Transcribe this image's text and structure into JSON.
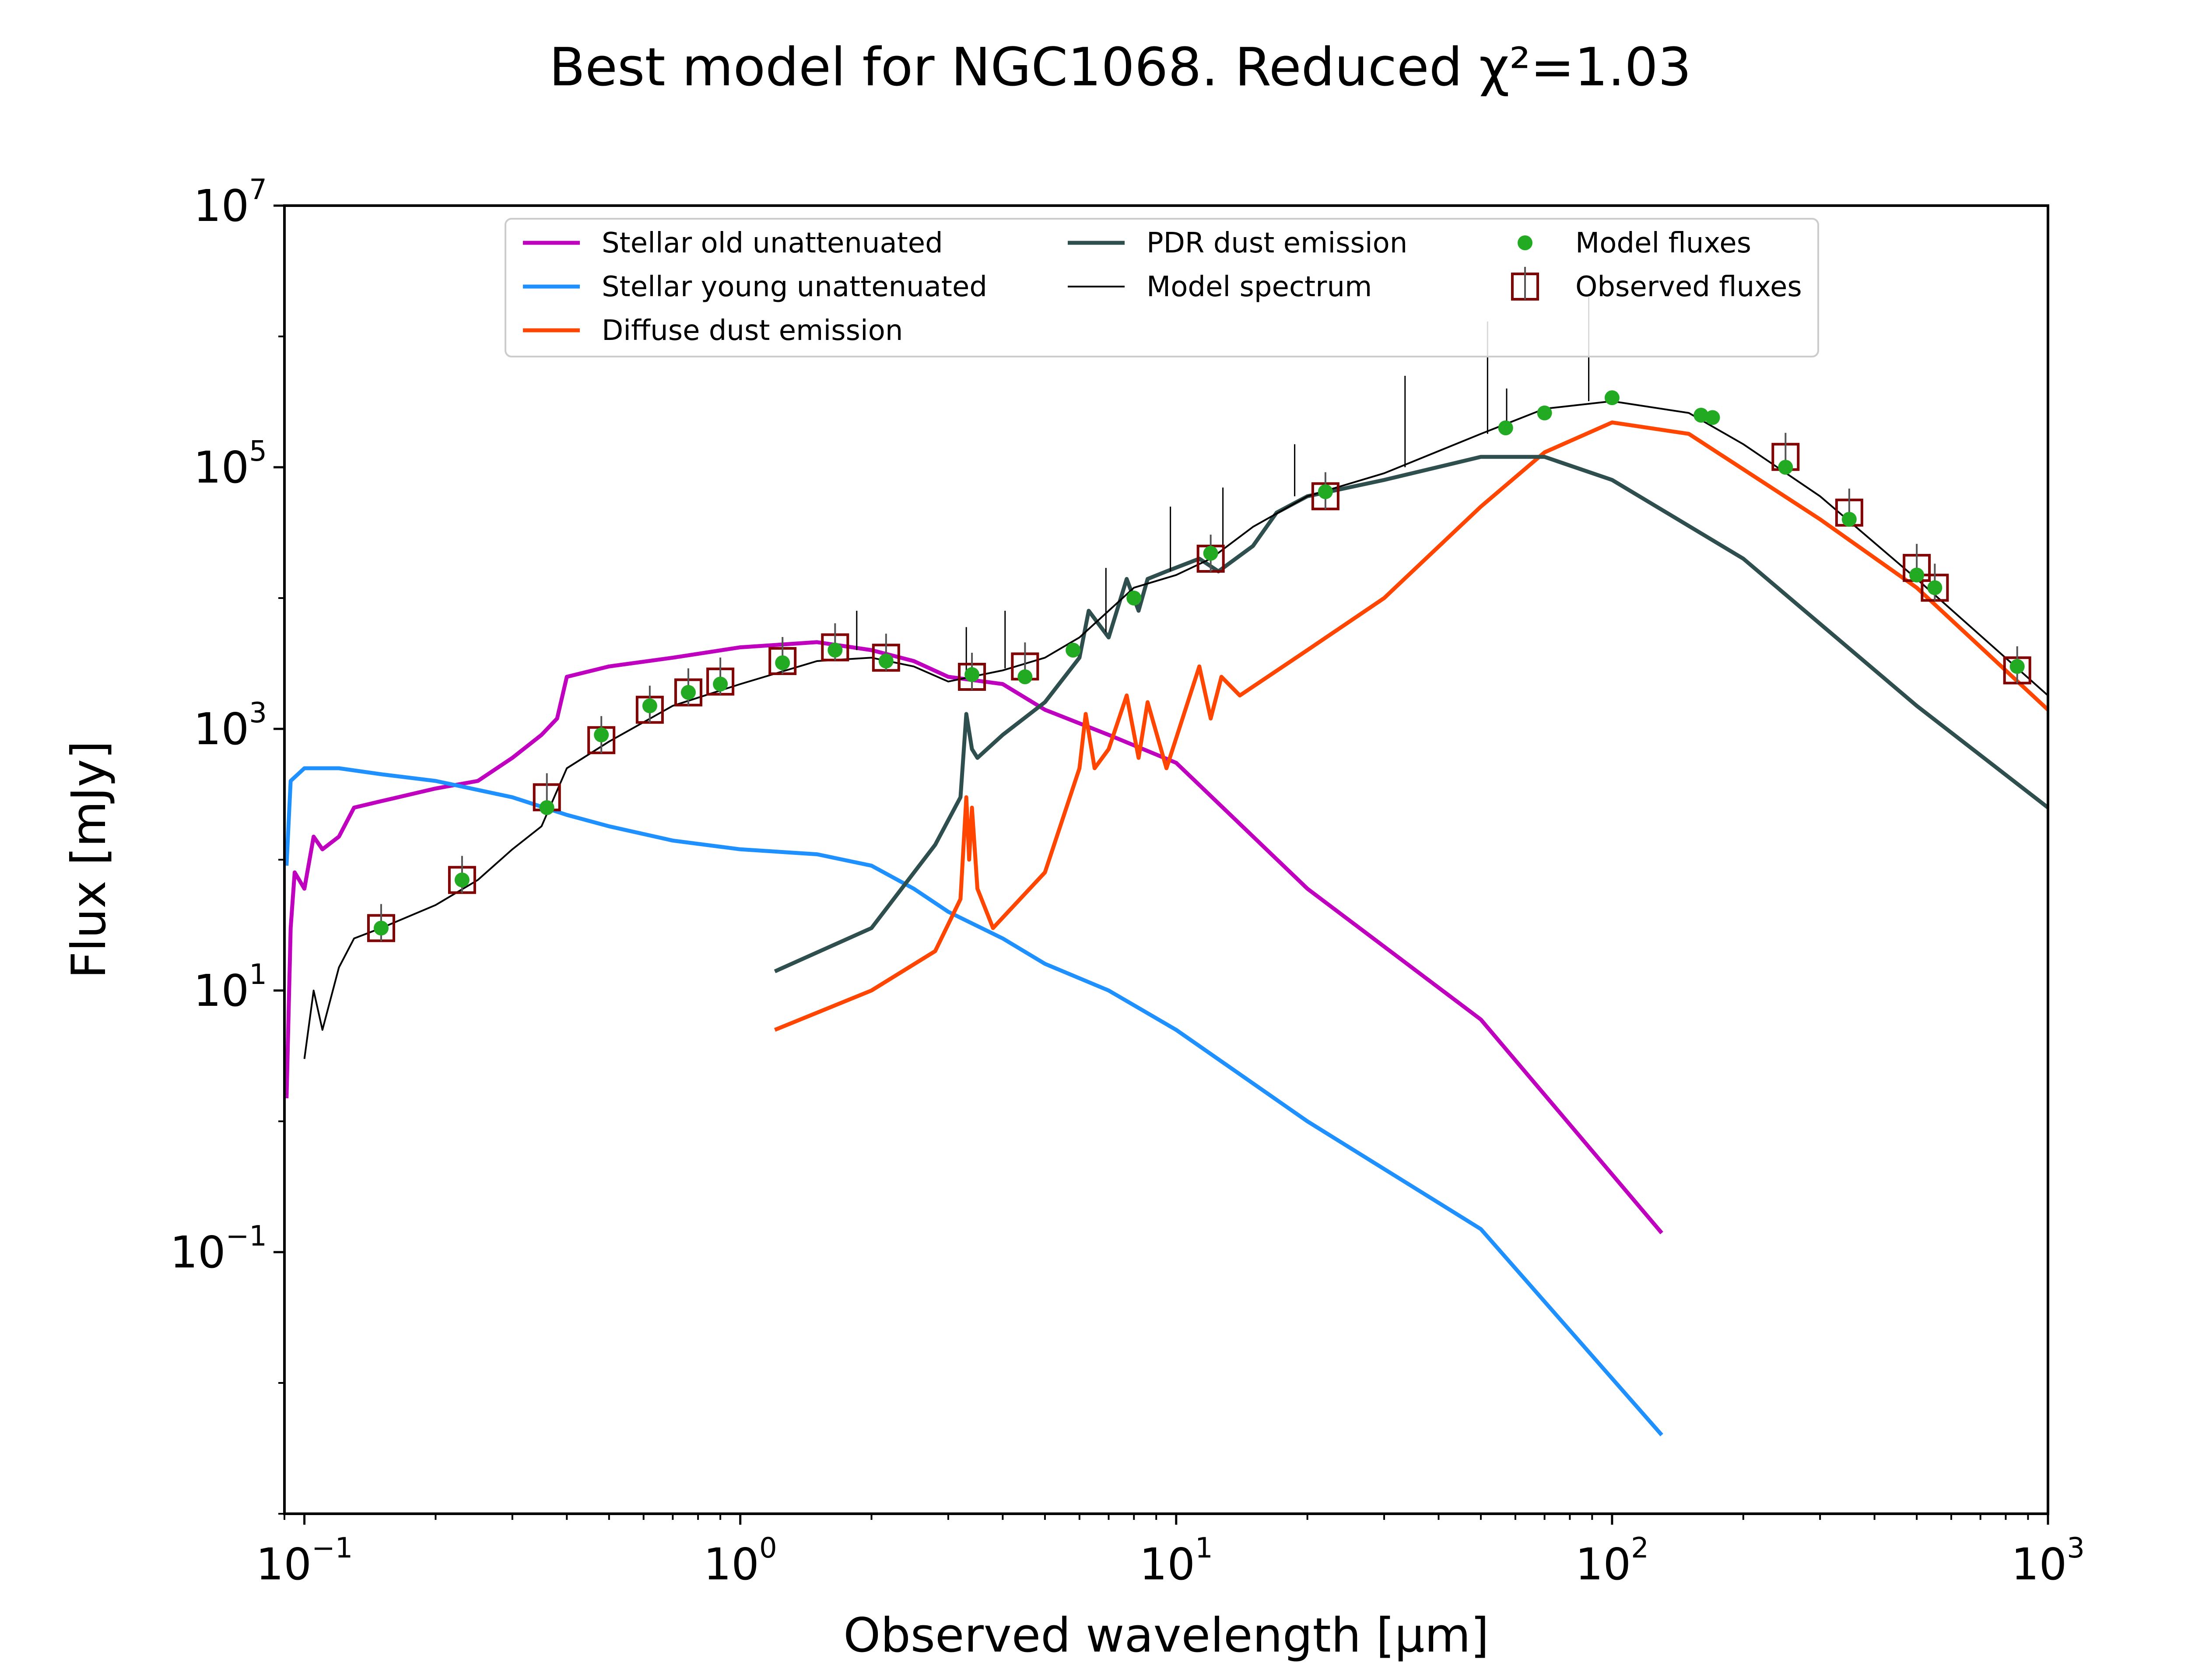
{
  "chart_data": {
    "type": "line",
    "title": "Best model for NGC1068. Reduced χ²=1.03",
    "xlabel": "Observed wavelength [μm]",
    "ylabel": "Flux [mJy]",
    "xscale": "log",
    "yscale": "log",
    "xlim": [
      0.09,
      1000
    ],
    "ylim": [
      0.001,
      10000000
    ],
    "x_ticks": [
      {
        "value": 0.1,
        "base": "10",
        "exp": "−1"
      },
      {
        "value": 1,
        "base": "10",
        "exp": "0"
      },
      {
        "value": 10,
        "base": "10",
        "exp": "1"
      },
      {
        "value": 100,
        "base": "10",
        "exp": "2"
      },
      {
        "value": 1000,
        "base": "10",
        "exp": "3"
      }
    ],
    "y_ticks": [
      {
        "value": 0.1,
        "base": "10",
        "exp": "−1"
      },
      {
        "value": 10,
        "base": "10",
        "exp": "1"
      },
      {
        "value": 1000,
        "base": "10",
        "exp": "3"
      },
      {
        "value": 100000,
        "base": "10",
        "exp": "5"
      },
      {
        "value": 10000000,
        "base": "10",
        "exp": "7"
      }
    ],
    "legend": {
      "position": "top-center",
      "columns": 3,
      "entries": [
        {
          "label": "Stellar old unattenuated",
          "kind": "line",
          "color": "#bf00bf"
        },
        {
          "label": "Stellar young unattenuated",
          "kind": "line",
          "color": "#1e90ff"
        },
        {
          "label": "Diffuse dust emission",
          "kind": "line",
          "color": "#ff4500"
        },
        {
          "label": "PDR dust emission",
          "kind": "line",
          "color": "#2f4f4f"
        },
        {
          "label": "Model spectrum",
          "kind": "thinline",
          "color": "#000000"
        },
        {
          "label": "Model fluxes",
          "kind": "dot",
          "color": "#22aa22"
        },
        {
          "label": "Observed fluxes",
          "kind": "square",
          "color": "#800000"
        }
      ]
    },
    "series": [
      {
        "name": "Stellar old unattenuated",
        "color": "#bf00bf",
        "width": 9,
        "points": [
          [
            0.091,
            1.5
          ],
          [
            0.093,
            30
          ],
          [
            0.095,
            80
          ],
          [
            0.1,
            60
          ],
          [
            0.105,
            150
          ],
          [
            0.11,
            120
          ],
          [
            0.12,
            150
          ],
          [
            0.13,
            250
          ],
          [
            0.15,
            280
          ],
          [
            0.2,
            350
          ],
          [
            0.25,
            400
          ],
          [
            0.3,
            600
          ],
          [
            0.35,
            900
          ],
          [
            0.38,
            1200
          ],
          [
            0.4,
            2500
          ],
          [
            0.5,
            3000
          ],
          [
            0.7,
            3500
          ],
          [
            1.0,
            4200
          ],
          [
            1.5,
            4600
          ],
          [
            2.0,
            4000
          ],
          [
            2.5,
            3300
          ],
          [
            3.0,
            2500
          ],
          [
            4.0,
            2200
          ],
          [
            5.0,
            1400
          ],
          [
            7.0,
            900
          ],
          [
            10.0,
            550
          ],
          [
            20.0,
            60
          ],
          [
            50.0,
            6
          ],
          [
            130.0,
            0.14
          ]
        ]
      },
      {
        "name": "Stellar young unattenuated",
        "color": "#1e90ff",
        "width": 9,
        "points": [
          [
            0.091,
            90
          ],
          [
            0.093,
            400
          ],
          [
            0.1,
            500
          ],
          [
            0.12,
            500
          ],
          [
            0.15,
            450
          ],
          [
            0.2,
            400
          ],
          [
            0.3,
            300
          ],
          [
            0.4,
            220
          ],
          [
            0.5,
            180
          ],
          [
            0.7,
            140
          ],
          [
            1.0,
            120
          ],
          [
            1.5,
            110
          ],
          [
            2.0,
            90
          ],
          [
            2.5,
            60
          ],
          [
            3.0,
            40
          ],
          [
            4.0,
            25
          ],
          [
            5.0,
            16
          ],
          [
            7.0,
            10
          ],
          [
            10.0,
            5
          ],
          [
            20.0,
            1
          ],
          [
            50.0,
            0.15
          ],
          [
            130.0,
            0.004
          ]
        ]
      },
      {
        "name": "Diffuse dust emission",
        "color": "#ff4500",
        "width": 9,
        "points": [
          [
            1.2,
            5
          ],
          [
            2.0,
            10
          ],
          [
            2.8,
            20
          ],
          [
            3.2,
            50
          ],
          [
            3.3,
            300
          ],
          [
            3.35,
            100
          ],
          [
            3.4,
            250
          ],
          [
            3.5,
            60
          ],
          [
            3.8,
            30
          ],
          [
            5.0,
            80
          ],
          [
            6.0,
            500
          ],
          [
            6.2,
            1300
          ],
          [
            6.5,
            500
          ],
          [
            7.0,
            700
          ],
          [
            7.7,
            1800
          ],
          [
            8.2,
            600
          ],
          [
            8.6,
            1600
          ],
          [
            9.5,
            500
          ],
          [
            11.3,
            3000
          ],
          [
            12.0,
            1200
          ],
          [
            12.7,
            2500
          ],
          [
            14.0,
            1800
          ],
          [
            20.0,
            4000
          ],
          [
            30.0,
            10000
          ],
          [
            50.0,
            50000
          ],
          [
            70.0,
            130000
          ],
          [
            100.0,
            220000
          ],
          [
            150.0,
            180000
          ],
          [
            300.0,
            40000
          ],
          [
            500.0,
            12000
          ],
          [
            1000.0,
            1400
          ]
        ]
      },
      {
        "name": "PDR dust emission",
        "color": "#2f4f4f",
        "width": 9,
        "points": [
          [
            1.2,
            14
          ],
          [
            2.0,
            30
          ],
          [
            2.8,
            130
          ],
          [
            3.2,
            300
          ],
          [
            3.3,
            1300
          ],
          [
            3.4,
            700
          ],
          [
            3.5,
            600
          ],
          [
            4.0,
            900
          ],
          [
            5.0,
            1600
          ],
          [
            6.0,
            3500
          ],
          [
            6.3,
            8000
          ],
          [
            7.0,
            5000
          ],
          [
            7.7,
            14000
          ],
          [
            8.2,
            8000
          ],
          [
            8.6,
            14000
          ],
          [
            9.5,
            16000
          ],
          [
            11.3,
            20000
          ],
          [
            12.5,
            16000
          ],
          [
            15.0,
            25000
          ],
          [
            17.0,
            45000
          ],
          [
            20.0,
            60000
          ],
          [
            30.0,
            80000
          ],
          [
            50.0,
            120000
          ],
          [
            70.0,
            120000
          ],
          [
            100.0,
            80000
          ],
          [
            200.0,
            20000
          ],
          [
            500.0,
            1500
          ],
          [
            1000.0,
            250
          ]
        ]
      },
      {
        "name": "Model spectrum",
        "color": "#000000",
        "width": 4,
        "points": [
          [
            0.1,
            3
          ],
          [
            0.105,
            10
          ],
          [
            0.11,
            5
          ],
          [
            0.12,
            15
          ],
          [
            0.13,
            25
          ],
          [
            0.15,
            30
          ],
          [
            0.2,
            45
          ],
          [
            0.25,
            70
          ],
          [
            0.3,
            120
          ],
          [
            0.35,
            180
          ],
          [
            0.4,
            500
          ],
          [
            0.5,
            800
          ],
          [
            0.7,
            1500
          ],
          [
            1.0,
            2200
          ],
          [
            1.5,
            3300
          ],
          [
            2.0,
            3500
          ],
          [
            2.5,
            3000
          ],
          [
            3.0,
            2300
          ],
          [
            4.0,
            2800
          ],
          [
            5.0,
            3500
          ],
          [
            6.0,
            5000
          ],
          [
            8.0,
            12000
          ],
          [
            10.0,
            15000
          ],
          [
            12.0,
            20000
          ],
          [
            15.0,
            35000
          ],
          [
            20.0,
            60000
          ],
          [
            30.0,
            90000
          ],
          [
            50.0,
            180000
          ],
          [
            70.0,
            280000
          ],
          [
            100.0,
            320000
          ],
          [
            150.0,
            260000
          ],
          [
            200.0,
            150000
          ],
          [
            300.0,
            60000
          ],
          [
            500.0,
            14000
          ],
          [
            1000.0,
            1800
          ]
        ]
      },
      {
        "name": "Model spectrum lines",
        "color": "#000000",
        "width": 3,
        "segments": [
          [
            [
              1.85,
              4000
            ],
            [
              1.85,
              8000
            ]
          ],
          [
            [
              3.3,
              2500
            ],
            [
              3.3,
              6000
            ]
          ],
          [
            [
              4.05,
              2900
            ],
            [
              4.05,
              8000
            ]
          ],
          [
            [
              6.9,
              5500
            ],
            [
              6.9,
              17000
            ]
          ],
          [
            [
              9.7,
              16000
            ],
            [
              9.7,
              50000
            ]
          ],
          [
            [
              12.8,
              22000
            ],
            [
              12.8,
              70000
            ]
          ],
          [
            [
              18.7,
              60000
            ],
            [
              18.7,
              150000
            ]
          ],
          [
            [
              33.5,
              100000
            ],
            [
              33.5,
              500000
            ]
          ],
          [
            [
              51.8,
              180000
            ],
            [
              51.8,
              1300000
            ]
          ],
          [
            [
              57.3,
              200000
            ],
            [
              57.3,
              400000
            ]
          ],
          [
            [
              88.4,
              320000
            ],
            [
              88.4,
              2000000
            ]
          ]
        ]
      }
    ],
    "model_fluxes": {
      "color": "#22aa22",
      "points": [
        [
          0.15,
          30
        ],
        [
          0.23,
          70
        ],
        [
          0.36,
          250
        ],
        [
          0.48,
          900
        ],
        [
          0.62,
          1500
        ],
        [
          0.76,
          1900
        ],
        [
          0.9,
          2200
        ],
        [
          1.25,
          3200
        ],
        [
          1.65,
          4000
        ],
        [
          2.16,
          3300
        ],
        [
          3.4,
          2600
        ],
        [
          4.5,
          2500
        ],
        [
          5.8,
          4000
        ],
        [
          8.0,
          10000
        ],
        [
          12.0,
          22000
        ],
        [
          22.0,
          65000
        ],
        [
          57.0,
          200000
        ],
        [
          70.0,
          260000
        ],
        [
          100.0,
          340000
        ],
        [
          160.0,
          250000
        ],
        [
          170.0,
          240000
        ],
        [
          250.0,
          100000
        ],
        [
          350.0,
          40000
        ],
        [
          500.0,
          15000
        ],
        [
          550.0,
          12000
        ],
        [
          850.0,
          3000
        ]
      ]
    },
    "observed_fluxes": {
      "color": "#800000",
      "points": [
        [
          0.15,
          30
        ],
        [
          0.23,
          70
        ],
        [
          0.36,
          300
        ],
        [
          0.48,
          820
        ],
        [
          0.62,
          1400
        ],
        [
          0.76,
          1900
        ],
        [
          0.9,
          2300
        ],
        [
          1.25,
          3300
        ],
        [
          1.65,
          4200
        ],
        [
          2.16,
          3500
        ],
        [
          3.4,
          2500
        ],
        [
          4.5,
          3000
        ],
        [
          12.0,
          20000
        ],
        [
          22.0,
          60000
        ],
        [
          250.0,
          120000
        ],
        [
          350.0,
          45000
        ],
        [
          500.0,
          17000
        ],
        [
          550.0,
          12000
        ],
        [
          850.0,
          2800
        ]
      ]
    }
  }
}
